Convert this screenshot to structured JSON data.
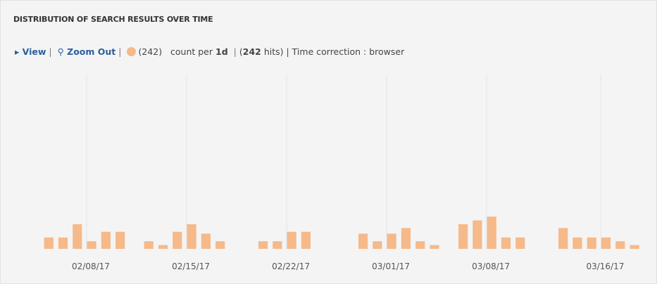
{
  "header": {
    "title": "DISTRIBUTION OF SEARCH RESULTS OVER TIME",
    "view": "View",
    "zoom_out": "Zoom Out",
    "legend_count": "(242)",
    "count_per": "count per",
    "interval": "1d",
    "hits_open": "(",
    "hits": "242",
    "hits_close": "hits)",
    "time_correction": "| Time correction : browser"
  },
  "chart_data": {
    "type": "bar",
    "color": "#f5b98a",
    "x": [
      "02/05/17",
      "02/06/17",
      "02/07/17",
      "02/08/17",
      "02/09/17",
      "02/10/17",
      "02/11/17",
      "02/12/17",
      "02/13/17",
      "02/14/17",
      "02/15/17",
      "02/16/17",
      "02/17/17",
      "02/18/17",
      "02/19/17",
      "02/20/17",
      "02/21/17",
      "02/22/17",
      "02/23/17",
      "02/24/17",
      "02/25/17",
      "02/26/17",
      "02/27/17",
      "02/28/17",
      "03/01/17",
      "03/02/17",
      "03/03/17",
      "03/04/17",
      "03/05/17",
      "03/06/17",
      "03/07/17",
      "03/08/17",
      "03/09/17",
      "03/10/17",
      "03/11/17",
      "03/12/17",
      "03/13/17",
      "03/14/17",
      "03/15/17",
      "03/16/17",
      "03/17/17",
      "03/18/17"
    ],
    "values": [
      6,
      6,
      13,
      4,
      9,
      9,
      0,
      4,
      2,
      9,
      13,
      8,
      4,
      0,
      0,
      4,
      4,
      9,
      9,
      0,
      0,
      0,
      8,
      4,
      8,
      11,
      4,
      2,
      0,
      13,
      15,
      17,
      6,
      6,
      0,
      0,
      11,
      6,
      6,
      6,
      4,
      2
    ],
    "ylim": [
      0,
      92
    ],
    "xticks": [
      "02/08/17",
      "02/15/17",
      "02/22/17",
      "03/01/17",
      "03/08/17",
      "03/16/17"
    ],
    "grid": true
  }
}
